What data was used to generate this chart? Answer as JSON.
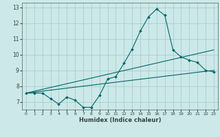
{
  "title": "",
  "xlabel": "Humidex (Indice chaleur)",
  "bg_color": "#cce8e8",
  "grid_color": "#b8d8d8",
  "line_color": "#006666",
  "xlim": [
    -0.5,
    23.5
  ],
  "ylim": [
    6.5,
    13.3
  ],
  "yticks": [
    7,
    8,
    9,
    10,
    11,
    12,
    13
  ],
  "xticks": [
    0,
    1,
    2,
    3,
    4,
    5,
    6,
    7,
    8,
    9,
    10,
    11,
    12,
    13,
    14,
    15,
    16,
    17,
    18,
    19,
    20,
    21,
    22,
    23
  ],
  "main_x": [
    0,
    1,
    2,
    3,
    4,
    5,
    6,
    7,
    8,
    9,
    10,
    11,
    12,
    13,
    14,
    15,
    16,
    17,
    18,
    19,
    20,
    21,
    22,
    23
  ],
  "main_y": [
    7.55,
    7.55,
    7.55,
    7.2,
    6.85,
    7.3,
    7.1,
    6.65,
    6.65,
    7.4,
    8.45,
    8.6,
    9.45,
    10.35,
    11.5,
    12.4,
    12.9,
    12.5,
    10.3,
    9.85,
    9.65,
    9.5,
    9.0,
    8.9
  ],
  "trend1_x": [
    0,
    23
  ],
  "trend1_y": [
    7.55,
    10.3
  ],
  "trend2_x": [
    0,
    23
  ],
  "trend2_y": [
    7.55,
    9.0
  ]
}
